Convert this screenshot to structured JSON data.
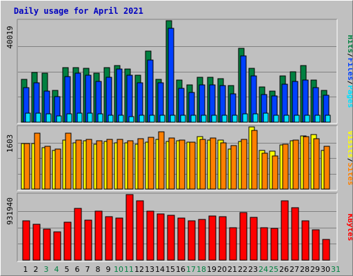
{
  "chart_data": {
    "type": "bar",
    "title": "Daily usage for April 2021",
    "colors": {
      "title": "#0000c0",
      "hits": "#008040",
      "files": "#0040ff",
      "pages": "#00e0ff",
      "visits": "#ffff00",
      "sites": "#ff8000",
      "kbytes": "#ff0000",
      "weekend_day": "#008040",
      "weekday": "#000000"
    },
    "x": [
      "1",
      "2",
      "3",
      "4",
      "5",
      "6",
      "7",
      "8",
      "9",
      "10",
      "11",
      "12",
      "13",
      "14",
      "15",
      "16",
      "17",
      "18",
      "19",
      "20",
      "21",
      "22",
      "23",
      "24",
      "25",
      "26",
      "27",
      "28",
      "29",
      "30",
      "31"
    ],
    "weekend_days": [
      "3",
      "4",
      "10",
      "11",
      "17",
      "18",
      "24",
      "25",
      "31"
    ],
    "panels": [
      {
        "id": "hits-files-pages",
        "max_label": "40019",
        "ylim": [
          0,
          40019
        ],
        "series": [
          {
            "name": "Hits",
            "color_key": "hits",
            "values": [
              16800,
              19600,
              19200,
              12500,
              21600,
              21600,
              21300,
              19300,
              21600,
              22300,
              20900,
              18500,
              28000,
              17000,
              39900,
              16700,
              14700,
              17600,
              17800,
              17100,
              14500,
              29000,
              21300,
              14000,
              12300,
              18200,
              19900,
              22300,
              16700,
              12500,
              0
            ]
          },
          {
            "name": "Files",
            "color_key": "files",
            "values": [
              13500,
              15600,
              12300,
              10100,
              18000,
              19300,
              18400,
              16000,
              17700,
              21000,
              18400,
              15400,
              24600,
              15400,
              37000,
              13300,
              11600,
              14600,
              14700,
              14400,
              11100,
              26000,
              18200,
              10800,
              10400,
              15100,
              16100,
              16500,
              13500,
              10700,
              0
            ]
          },
          {
            "name": "Pages",
            "color_key": "pages",
            "values": [
              3600,
              3600,
              3300,
              2400,
              3300,
              3500,
              3500,
              3400,
              2700,
              2800,
              2300,
              2800,
              2800,
              2600,
              2800,
              2600,
              2700,
              2600,
              2600,
              2800,
              2700,
              3200,
              3300,
              3500,
              2700,
              2700,
              2700,
              2800,
              2700,
              2800,
              0
            ]
          }
        ],
        "legend": [
          "Pages",
          "Files",
          "Hits"
        ]
      },
      {
        "id": "visits-sites",
        "max_label": "1603",
        "ylim": [
          0,
          1603
        ],
        "series": [
          {
            "name": "Visits",
            "color_key": "visits",
            "values": [
              1180,
              1180,
              1070,
              1000,
              1260,
              1190,
              1240,
              1150,
              1230,
              1190,
              1200,
              1160,
              1210,
              1290,
              1230,
              1250,
              1210,
              1350,
              1260,
              1270,
              1040,
              1230,
              1600,
              1000,
              980,
              1140,
              1250,
              1380,
              1400,
              1000,
              0
            ]
          },
          {
            "name": "Sites",
            "color_key": "sites",
            "values": [
              1170,
              1450,
              1110,
              1030,
              1440,
              1270,
              1280,
              1240,
              1290,
              1290,
              1250,
              1300,
              1340,
              1480,
              1310,
              1260,
              1220,
              1290,
              1320,
              1190,
              1120,
              1290,
              1510,
              930,
              850,
              1160,
              1270,
              1360,
              1300,
              1100,
              0
            ]
          }
        ],
        "legend": [
          "Sites",
          "Visits"
        ]
      },
      {
        "id": "kbytes",
        "max_label": "931940",
        "ylim": [
          0,
          931940
        ],
        "series": [
          {
            "name": "KBytes",
            "color_key": "kbytes",
            "values": [
              560000,
              510000,
              440000,
              400000,
              540000,
              740000,
              570000,
              700000,
              620000,
              600000,
              930000,
              840000,
              700000,
              660000,
              640000,
              600000,
              560000,
              580000,
              630000,
              620000,
              460000,
              680000,
              610000,
              460000,
              450000,
              840000,
              750000,
              560000,
              430000,
              290000,
              0
            ]
          }
        ],
        "legend": [
          "KBytes"
        ]
      }
    ]
  }
}
